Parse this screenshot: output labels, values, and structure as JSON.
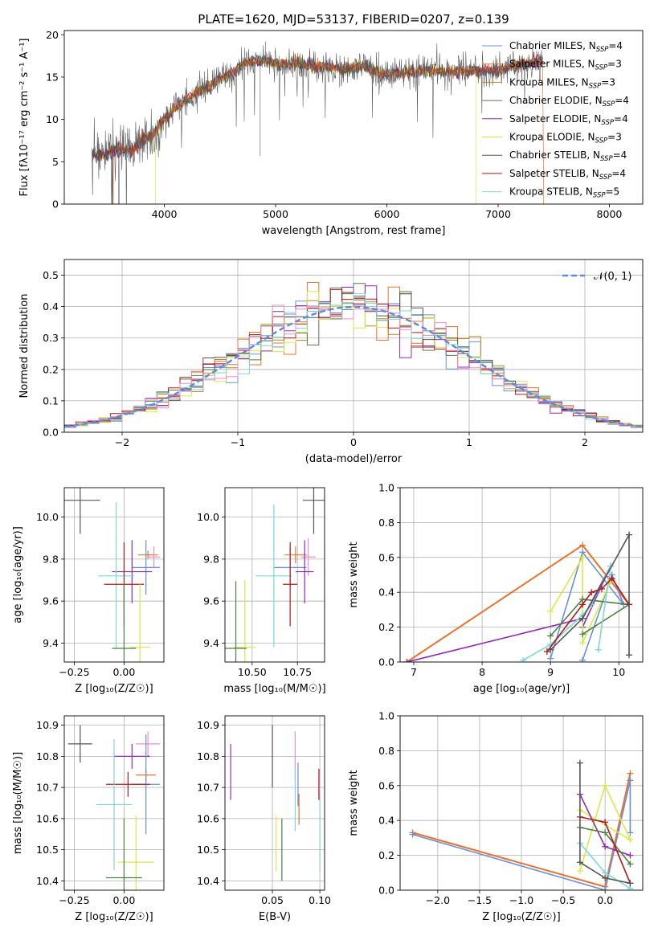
{
  "palette": {
    "chabrier_miles": "#6a8fd8",
    "salpeter_miles": "#e8732e",
    "kroupa_miles": "#b8861b",
    "chabrier_elodie": "#4f7f45",
    "salpeter_elodie": "#8f2bb0",
    "kroupa_elodie": "#d9e84a",
    "chabrier_stelib": "#555555",
    "salpeter_stelib": "#b01a1a",
    "kroupa_stelib": "#7fd6d6",
    "pink": "#f08cc8",
    "normal_curve": "#5b8ddb"
  },
  "chart_data": [
    {
      "id": "spectrum",
      "type": "line",
      "title": "PLATE=1620, MJD=53137, FIBERID=0207, z=0.139",
      "xlabel": "wavelength [Angstrom, rest frame]",
      "ylabel": "Flux [fλ10⁻¹⁷ erg cm⁻² s⁻¹ A⁻¹]",
      "xlim": [
        3100,
        8300
      ],
      "ylim": [
        0,
        20.5
      ],
      "xticks": [
        "4000",
        "5000",
        "6000",
        "7000",
        "8000"
      ],
      "yticks": [
        "0",
        "5",
        "10",
        "15",
        "20"
      ],
      "grid": false,
      "legend_position": "right",
      "legend": [
        {
          "label": "Chabrier MILES, NSSP=4",
          "color_key": "chabrier_miles",
          "base": "Chabrier MILES, N",
          "sub": "SSP",
          "tail": "=4"
        },
        {
          "label": "Salpeter MILES, NSSP=3",
          "color_key": "salpeter_miles",
          "base": "Salpeter MILES, N",
          "sub": "SSP",
          "tail": "=3"
        },
        {
          "label": "Kroupa MILES, NSSP=3",
          "color_key": "kroupa_miles",
          "base": "Kroupa MILES, N",
          "sub": "SSP",
          "tail": "=3"
        },
        {
          "label": "Chabrier ELODIE, NSSP=4",
          "color_key": "chabrier_elodie",
          "base": "Chabrier ELODIE, N",
          "sub": "SSP",
          "tail": "=4"
        },
        {
          "label": "Salpeter ELODIE, NSSP=4",
          "color_key": "salpeter_elodie",
          "base": "Salpeter ELODIE, N",
          "sub": "SSP",
          "tail": "=4"
        },
        {
          "label": "Kroupa ELODIE, NSSP=3",
          "color_key": "kroupa_elodie",
          "base": "Kroupa ELODIE, N",
          "sub": "SSP",
          "tail": "=3"
        },
        {
          "label": "Chabrier STELIB, NSSP=4",
          "color_key": "chabrier_stelib",
          "base": "Chabrier STELIB, N",
          "sub": "SSP",
          "tail": "=4"
        },
        {
          "label": "Salpeter STELIB, NSSP=4",
          "color_key": "salpeter_stelib",
          "base": "Salpeter STELIB, N",
          "sub": "SSP",
          "tail": "=4"
        },
        {
          "label": "Kroupa STELIB, NSSP=5",
          "color_key": "kroupa_stelib",
          "base": "Kroupa STELIB, N",
          "sub": "SSP",
          "tail": "=5"
        }
      ],
      "observed_envelope": {
        "x": [
          3350,
          3500,
          3600,
          3700,
          3800,
          3900,
          4000,
          4100,
          4200,
          4300,
          4400,
          4500,
          4600,
          4700,
          4800,
          4900,
          5000,
          5200,
          5400,
          5600,
          5800,
          6000,
          6200,
          6400,
          6600,
          6800,
          7000,
          7200,
          7400
        ],
        "y": [
          5.8,
          6.0,
          6.5,
          6.3,
          7.5,
          8.2,
          10.0,
          11.5,
          12.3,
          13.3,
          13.8,
          14.8,
          15.4,
          16.5,
          16.8,
          17.0,
          16.5,
          16.6,
          16.2,
          16.0,
          16.2,
          15.2,
          15.6,
          15.8,
          15.7,
          15.8,
          15.8,
          16.5,
          16.8
        ]
      },
      "model_truncation": [
        {
          "color_key": "salpeter_miles",
          "x_min": 3540,
          "x_max": 7410
        },
        {
          "color_key": "kroupa_elodie",
          "x_min": 3920,
          "x_max": 6800
        },
        {
          "color_key": "chabrier_stelib",
          "x_min": 3990,
          "x_max": 7400
        }
      ]
    },
    {
      "id": "residuals",
      "type": "area",
      "xlabel": "(data-model)/error",
      "ylabel": "Normed distribution",
      "xlim": [
        -2.5,
        2.5
      ],
      "ylim": [
        0,
        0.55
      ],
      "xticks": [
        "−2",
        "−1",
        "0",
        "1",
        "2"
      ],
      "yticks": [
        "0.0",
        "0.1",
        "0.2",
        "0.3",
        "0.4",
        "0.5"
      ],
      "grid": true,
      "legend_position": "top-right",
      "legend": [
        "𝒩(0, 1)"
      ],
      "bin_width": 0.1,
      "normal": {
        "mean": 0,
        "sigma": 1,
        "style": "dashed"
      }
    },
    {
      "id": "age-vs-Z",
      "type": "scatter",
      "xlabel": "Z [log₁₀(Z/Z☉)]",
      "ylabel": "age  [log₁₀(age/yr)]",
      "xlim": [
        -0.3,
        0.2
      ],
      "ylim": [
        9.31,
        10.14
      ],
      "xticks": [
        "−0.25",
        "0.00"
      ],
      "yticks": [
        "9.4",
        "9.6",
        "9.8",
        "10.0"
      ],
      "grid": true,
      "points": [
        {
          "color_key": "chabrier_stelib",
          "x": -0.22,
          "y": 10.08,
          "xerr": 0.1,
          "yerr": 0.16
        },
        {
          "color_key": "salpeter_miles",
          "x": 0.12,
          "y": 9.82,
          "xerr": 0.05,
          "yerr": 0.02
        },
        {
          "color_key": "pink",
          "x": 0.15,
          "y": 9.81,
          "xerr": 0.03,
          "yerr": 0.05
        },
        {
          "color_key": "chabrier_miles",
          "x": 0.11,
          "y": 9.76,
          "xerr": 0.07,
          "yerr": 0.13
        },
        {
          "color_key": "salpeter_elodie",
          "x": 0.04,
          "y": 9.74,
          "xerr": 0.1,
          "yerr": 0.15
        },
        {
          "color_key": "kroupa_stelib",
          "x": -0.04,
          "y": 9.72,
          "xerr": 0.09,
          "yerr": 0.35
        },
        {
          "color_key": "salpeter_stelib",
          "x": 0.0,
          "y": 9.68,
          "xerr": 0.1,
          "yerr": 0.2
        },
        {
          "color_key": "kroupa_elodie",
          "x": 0.08,
          "y": 9.38,
          "xerr": 0.05,
          "yerr": 0.3
        },
        {
          "color_key": "chabrier_elodie",
          "x": 0.0,
          "y": 9.375,
          "xerr": 0.06,
          "yerr": 0.31
        }
      ]
    },
    {
      "id": "age-vs-mass",
      "type": "scatter",
      "xlabel": "mass [log₁₀(M/M☉)]",
      "ylabel": "",
      "xlim": [
        10.35,
        10.9
      ],
      "ylim": [
        9.31,
        10.14
      ],
      "xticks": [
        "10.50",
        "10.75"
      ],
      "yticks": [
        "9.4",
        "9.6",
        "9.8",
        "10.0"
      ],
      "grid": true,
      "points": [
        {
          "color_key": "chabrier_stelib",
          "x": 10.84,
          "y": 10.08,
          "xerr": 0.06,
          "yerr": 0.16
        },
        {
          "color_key": "salpeter_miles",
          "x": 10.74,
          "y": 9.82,
          "xerr": 0.06,
          "yerr": 0.04
        },
        {
          "color_key": "pink",
          "x": 10.81,
          "y": 9.81,
          "xerr": 0.04,
          "yerr": 0.09
        },
        {
          "color_key": "chabrier_miles",
          "x": 10.71,
          "y": 9.76,
          "xerr": 0.09,
          "yerr": 0.1
        },
        {
          "color_key": "salpeter_elodie",
          "x": 10.79,
          "y": 9.74,
          "xerr": 0.05,
          "yerr": 0.15
        },
        {
          "color_key": "kroupa_stelib",
          "x": 10.62,
          "y": 9.72,
          "xerr": 0.1,
          "yerr": 0.34
        },
        {
          "color_key": "salpeter_stelib",
          "x": 10.71,
          "y": 9.68,
          "xerr": 0.04,
          "yerr": 0.2
        },
        {
          "color_key": "kroupa_elodie",
          "x": 10.46,
          "y": 9.38,
          "xerr": 0.06,
          "yerr": 0.32
        },
        {
          "color_key": "chabrier_elodie",
          "x": 10.41,
          "y": 9.375,
          "xerr": 0.06,
          "yerr": 0.32
        }
      ]
    },
    {
      "id": "mass-weight-vs-age",
      "type": "line",
      "xlabel": "age  [log₁₀(age/yr)]",
      "ylabel": "mass weight",
      "xlim": [
        6.8,
        10.35
      ],
      "ylim": [
        0,
        1
      ],
      "xticks": [
        "7",
        "8",
        "9",
        "10"
      ],
      "yticks": [
        "0.0",
        "0.2",
        "0.4",
        "0.6",
        "0.8",
        "1.0"
      ],
      "grid": true,
      "series": [
        {
          "color_key": "salpeter_miles",
          "points": [
            [
              6.9,
              0.0
            ],
            [
              9.47,
              0.67
            ],
            [
              10.15,
              0.33
            ]
          ],
          "width": 2
        },
        {
          "color_key": "chabrier_miles",
          "points": [
            [
              9.0,
              0.02
            ],
            [
              9.47,
              0.63
            ],
            [
              10.07,
              0.33
            ],
            [
              9.9,
              0.5
            ],
            [
              9.47,
              0.01
            ]
          ]
        },
        {
          "color_key": "salpeter_elodie",
          "points": [
            [
              6.9,
              0.0
            ],
            [
              9.47,
              0.25
            ],
            [
              9.88,
              0.55
            ],
            [
              9.47,
              0.2
            ]
          ]
        },
        {
          "color_key": "kroupa_elodie",
          "points": [
            [
              9.0,
              0.29
            ],
            [
              9.47,
              0.6
            ],
            [
              9.47,
              0.11
            ],
            [
              9.88,
              0.46
            ]
          ]
        },
        {
          "color_key": "chabrier_elodie",
          "points": [
            [
              9.0,
              0.15
            ],
            [
              9.47,
              0.36
            ],
            [
              10.15,
              0.33
            ],
            [
              9.47,
              0.16
            ]
          ]
        },
        {
          "color_key": "kroupa_stelib",
          "points": [
            [
              8.6,
              0.01
            ],
            [
              9.0,
              0.1
            ],
            [
              9.47,
              0.27
            ],
            [
              9.6,
              0.33
            ],
            [
              9.88,
              0.55
            ],
            [
              9.7,
              0.07
            ]
          ]
        },
        {
          "color_key": "salpeter_stelib",
          "points": [
            [
              8.95,
              0.06
            ],
            [
              9.47,
              0.33
            ],
            [
              9.6,
              0.4
            ],
            [
              9.75,
              0.42
            ],
            [
              9.9,
              0.48
            ],
            [
              10.15,
              0.33
            ]
          ]
        },
        {
          "color_key": "chabrier_stelib",
          "points": [
            [
              9.0,
              0.07
            ],
            [
              9.47,
              0.25
            ],
            [
              10.15,
              0.73
            ],
            [
              10.15,
              0.04
            ]
          ]
        }
      ]
    },
    {
      "id": "mass-vs-Z",
      "type": "scatter",
      "xlabel": "Z [log₁₀(Z/Z☉)]",
      "ylabel": "mass [log₁₀(M/M☉)]",
      "xlim": [
        -0.3,
        0.2
      ],
      "ylim": [
        10.37,
        10.93
      ],
      "xticks": [
        "−0.25",
        "0.00"
      ],
      "yticks": [
        "10.4",
        "10.5",
        "10.6",
        "10.7",
        "10.8",
        "10.9"
      ],
      "grid": true,
      "points": [
        {
          "color_key": "chabrier_stelib",
          "x": -0.22,
          "y": 10.84,
          "xerr": 0.06,
          "yerr": 0.06
        },
        {
          "color_key": "pink",
          "x": 0.12,
          "y": 10.84,
          "xerr": 0.06,
          "yerr": 0.04
        },
        {
          "color_key": "salpeter_elodie",
          "x": 0.04,
          "y": 10.8,
          "xerr": 0.09,
          "yerr": 0.04
        },
        {
          "color_key": "salpeter_miles",
          "x": 0.11,
          "y": 10.74,
          "xerr": 0.05,
          "yerr": 0.02
        },
        {
          "color_key": "chabrier_miles",
          "x": 0.11,
          "y": 10.71,
          "xerr": 0.07,
          "yerr": 0.16
        },
        {
          "color_key": "salpeter_stelib",
          "x": 0.02,
          "y": 10.71,
          "xerr": 0.11,
          "yerr": 0.04
        },
        {
          "color_key": "kroupa_stelib",
          "x": -0.05,
          "y": 10.645,
          "xerr": 0.09,
          "yerr": 0.21
        },
        {
          "color_key": "kroupa_elodie",
          "x": 0.06,
          "y": 10.46,
          "xerr": 0.09,
          "yerr": 0.15
        },
        {
          "color_key": "chabrier_elodie",
          "x": 0.0,
          "y": 10.41,
          "xerr": 0.09,
          "yerr": 0.19
        }
      ]
    },
    {
      "id": "mass-vs-EBV",
      "type": "scatter",
      "xlabel": "E(B-V)",
      "ylabel": "",
      "xlim": [
        0.0,
        0.105
      ],
      "ylim": [
        10.37,
        10.93
      ],
      "xticks": [
        "0.05",
        "0.10"
      ],
      "yticks": [
        "10.4",
        "10.5",
        "10.6",
        "10.7",
        "10.8",
        "10.9"
      ],
      "grid": true,
      "points": [
        {
          "color_key": "salpeter_elodie",
          "x": 0.006,
          "y": 10.75,
          "xerr": 0,
          "yerr": 0.09
        },
        {
          "color_key": "chabrier_stelib",
          "x": 0.05,
          "y": 10.8,
          "xerr": 0,
          "yerr": 0.1
        },
        {
          "color_key": "kroupa_elodie",
          "x": 0.054,
          "y": 10.52,
          "xerr": 0,
          "yerr": 0.09
        },
        {
          "color_key": "chabrier_elodie",
          "x": 0.06,
          "y": 10.5,
          "xerr": 0,
          "yerr": 0.1
        },
        {
          "color_key": "pink",
          "x": 0.074,
          "y": 10.8,
          "xerr": 0,
          "yerr": 0.08
        },
        {
          "color_key": "kroupa_stelib",
          "x": 0.074,
          "y": 10.66,
          "xerr": 0,
          "yerr": 0.1
        },
        {
          "color_key": "chabrier_miles",
          "x": 0.077,
          "y": 10.71,
          "xerr": 0,
          "yerr": 0.07
        },
        {
          "color_key": "salpeter_miles",
          "x": 0.078,
          "y": 10.63,
          "xerr": 0,
          "yerr": 0.05
        },
        {
          "color_key": "salpeter_stelib",
          "x": 0.099,
          "y": 10.71,
          "xerr": 0,
          "yerr": 0.05
        },
        {
          "color_key": "kroupa_stelib",
          "x": 0.1,
          "y": 10.55,
          "xerr": 0,
          "yerr": 0.12
        }
      ]
    },
    {
      "id": "mass-weight-vs-Z",
      "type": "line",
      "xlabel": "Z [log₁₀(Z/Z☉)]",
      "ylabel": "mass weight",
      "xlim": [
        -2.45,
        0.45
      ],
      "ylim": [
        0,
        1
      ],
      "xticks": [
        "−2.0",
        "−1.5",
        "−1.0",
        "−0.5",
        "0.0"
      ],
      "yticks": [
        "0.0",
        "0.2",
        "0.4",
        "0.6",
        "0.8",
        "1.0"
      ],
      "grid": true,
      "series": [
        {
          "color_key": "salpeter_miles",
          "points": [
            [
              -2.3,
              0.33
            ],
            [
              0.0,
              0.02
            ],
            [
              0.3,
              0.67
            ]
          ],
          "width": 2
        },
        {
          "color_key": "chabrier_miles",
          "points": [
            [
              -2.3,
              0.32
            ],
            [
              0.0,
              0.0
            ],
            [
              0.3,
              0.63
            ],
            [
              0.3,
              0.33
            ]
          ]
        },
        {
          "color_key": "kroupa_elodie",
          "points": [
            [
              -0.3,
              0.11
            ],
            [
              0.0,
              0.6
            ],
            [
              0.3,
              0.29
            ],
            [
              -0.3,
              0.46
            ]
          ]
        },
        {
          "color_key": "salpeter_elodie",
          "points": [
            [
              -0.3,
              0.55
            ],
            [
              0.0,
              0.25
            ],
            [
              0.3,
              0.2
            ]
          ]
        },
        {
          "color_key": "chabrier_elodie",
          "points": [
            [
              -0.3,
              0.36
            ],
            [
              0.0,
              0.33
            ],
            [
              0.3,
              0.15
            ]
          ]
        },
        {
          "color_key": "kroupa_stelib",
          "points": [
            [
              -0.3,
              0.27
            ],
            [
              0.0,
              0.1
            ],
            [
              0.3,
              0.01
            ]
          ]
        },
        {
          "color_key": "salpeter_stelib",
          "points": [
            [
              -0.3,
              0.42
            ],
            [
              0.0,
              0.39
            ],
            [
              0.3,
              0.04
            ]
          ]
        },
        {
          "color_key": "chabrier_stelib",
          "points": [
            [
              -0.3,
              0.73
            ],
            [
              -0.3,
              0.16
            ],
            [
              0.0,
              0.07
            ],
            [
              0.3,
              0.04
            ]
          ]
        }
      ]
    }
  ]
}
